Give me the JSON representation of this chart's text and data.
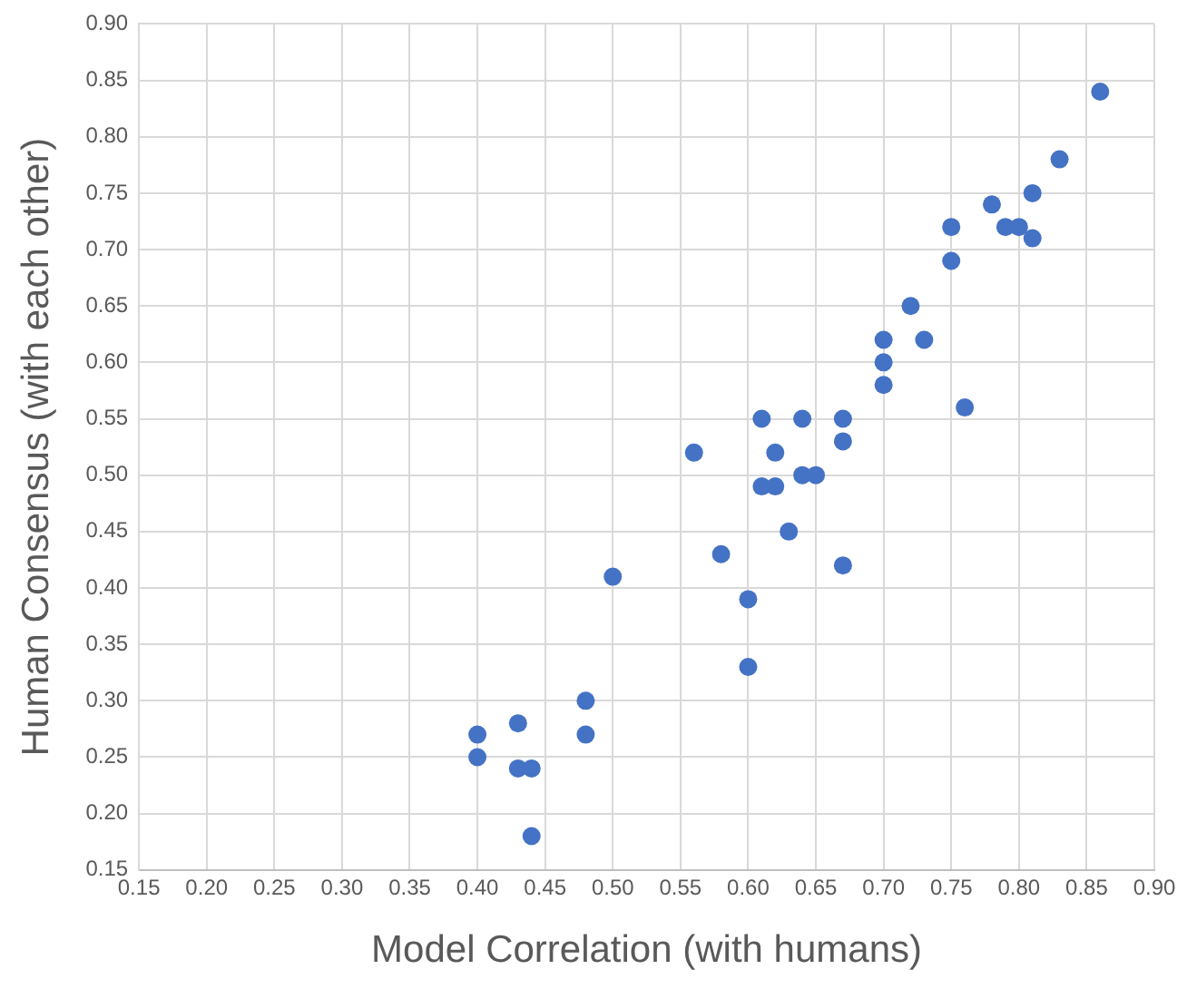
{
  "chart_data": {
    "type": "scatter",
    "xlabel": "Model Correlation (with humans)",
    "ylabel": "Human Consensus (with each other)",
    "x": [
      0.4,
      0.4,
      0.43,
      0.43,
      0.44,
      0.44,
      0.48,
      0.48,
      0.5,
      0.56,
      0.58,
      0.6,
      0.6,
      0.61,
      0.61,
      0.62,
      0.62,
      0.63,
      0.64,
      0.64,
      0.65,
      0.67,
      0.67,
      0.67,
      0.7,
      0.7,
      0.7,
      0.72,
      0.73,
      0.75,
      0.75,
      0.76,
      0.78,
      0.79,
      0.8,
      0.81,
      0.81,
      0.83,
      0.86
    ],
    "series": [
      {
        "color": "#4472c4",
        "values": [
          0.27,
          0.25,
          0.28,
          0.24,
          0.24,
          0.18,
          0.3,
          0.27,
          0.41,
          0.52,
          0.43,
          0.39,
          0.33,
          0.55,
          0.49,
          0.52,
          0.49,
          0.45,
          0.55,
          0.5,
          0.5,
          0.55,
          0.53,
          0.42,
          0.62,
          0.6,
          0.58,
          0.65,
          0.62,
          0.72,
          0.69,
          0.56,
          0.74,
          0.72,
          0.72,
          0.75,
          0.71,
          0.78,
          0.84
        ]
      }
    ],
    "xlim": [
      0.15,
      0.9
    ],
    "ylim": [
      0.15,
      0.9
    ],
    "xticks": [
      {
        "value": 0.15,
        "label": "0.15"
      },
      {
        "value": 0.2,
        "label": "0.20"
      },
      {
        "value": 0.25,
        "label": "0.25"
      },
      {
        "value": 0.3,
        "label": "0.30"
      },
      {
        "value": 0.35,
        "label": "0.35"
      },
      {
        "value": 0.4,
        "label": "0.40"
      },
      {
        "value": 0.45,
        "label": "0.45"
      },
      {
        "value": 0.5,
        "label": "0.50"
      },
      {
        "value": 0.55,
        "label": "0.55"
      },
      {
        "value": 0.6,
        "label": "0.60"
      },
      {
        "value": 0.65,
        "label": "0.65"
      },
      {
        "value": 0.7,
        "label": "0.70"
      },
      {
        "value": 0.75,
        "label": "0.75"
      },
      {
        "value": 0.8,
        "label": "0.80"
      },
      {
        "value": 0.85,
        "label": "0.85"
      },
      {
        "value": 0.9,
        "label": "0.90"
      }
    ],
    "yticks": [
      {
        "value": 0.15,
        "label": "0.15"
      },
      {
        "value": 0.2,
        "label": "0.20"
      },
      {
        "value": 0.25,
        "label": "0.25"
      },
      {
        "value": 0.3,
        "label": "0.30"
      },
      {
        "value": 0.35,
        "label": "0.35"
      },
      {
        "value": 0.4,
        "label": "0.40"
      },
      {
        "value": 0.45,
        "label": "0.45"
      },
      {
        "value": 0.5,
        "label": "0.50"
      },
      {
        "value": 0.55,
        "label": "0.55"
      },
      {
        "value": 0.6,
        "label": "0.60"
      },
      {
        "value": 0.65,
        "label": "0.65"
      },
      {
        "value": 0.7,
        "label": "0.70"
      },
      {
        "value": 0.75,
        "label": "0.75"
      },
      {
        "value": 0.8,
        "label": "0.80"
      },
      {
        "value": 0.85,
        "label": "0.85"
      },
      {
        "value": 0.9,
        "label": "0.90"
      }
    ],
    "grid": true,
    "legend": false,
    "marker": "circle"
  }
}
